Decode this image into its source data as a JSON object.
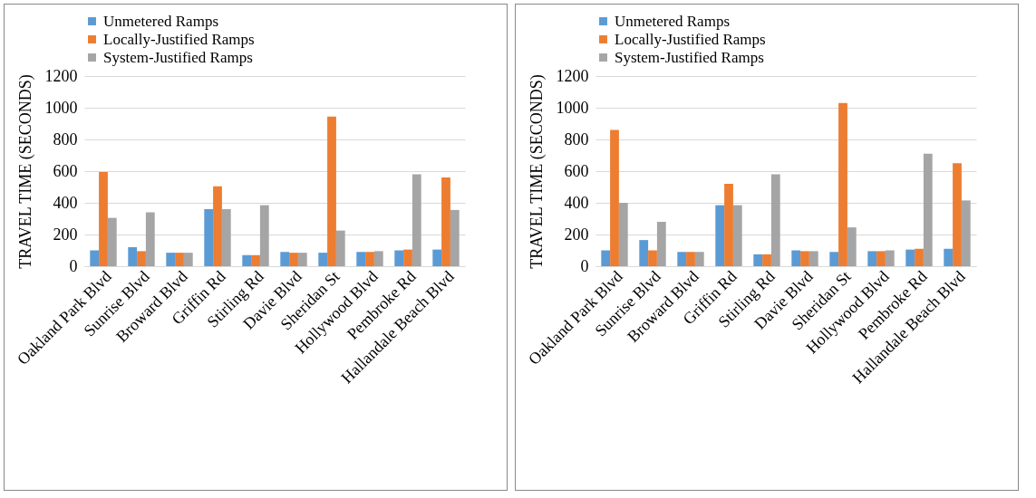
{
  "chart_data": [
    {
      "type": "bar",
      "ylabel": "TRAVEL TIME (SECONDS)",
      "categories": [
        "Oakland Park Blvd",
        "Sunrise Blvd",
        "Broward Blvd",
        "Griffin Rd",
        "Stirling Rd",
        "Davie Blvd",
        "Sheridan St",
        "Hollywood Blvd",
        "Pembroke Rd",
        "Hallandale Beach Blvd"
      ],
      "series": [
        {
          "name": "Unmetered Ramps",
          "color": "#5b9bd5",
          "values": [
            100,
            120,
            85,
            360,
            70,
            90,
            85,
            90,
            100,
            105
          ]
        },
        {
          "name": "Locally-Justified Ramps",
          "color": "#ed7d31",
          "values": [
            595,
            95,
            85,
            505,
            70,
            85,
            945,
            90,
            105,
            560
          ]
        },
        {
          "name": "System-Justified Ramps",
          "color": "#a5a5a5",
          "values": [
            305,
            340,
            85,
            360,
            385,
            85,
            225,
            95,
            580,
            355
          ]
        }
      ],
      "ylim": [
        0,
        1200
      ],
      "yticks": [
        0,
        200,
        400,
        600,
        800,
        1000,
        1200
      ],
      "grid": "y",
      "legend": "top"
    },
    {
      "type": "bar",
      "ylabel": "TRAVEL TIME (SECONDS)",
      "categories": [
        "Oakland Park Blvd",
        "Sunrise Blvd",
        "Broward Blvd",
        "Griffin Rd",
        "Stirling Rd",
        "Davie Blvd",
        "Sheridan St",
        "Hollywood Blvd",
        "Pembroke Rd",
        "Hallandale Beach Blvd"
      ],
      "series": [
        {
          "name": "Unmetered Ramps",
          "color": "#5b9bd5",
          "values": [
            100,
            165,
            90,
            385,
            75,
            100,
            90,
            95,
            105,
            110
          ]
        },
        {
          "name": "Locally-Justified Ramps",
          "color": "#ed7d31",
          "values": [
            860,
            100,
            90,
            520,
            75,
            95,
            1030,
            95,
            110,
            650
          ]
        },
        {
          "name": "System-Justified Ramps",
          "color": "#a5a5a5",
          "values": [
            400,
            280,
            90,
            385,
            580,
            95,
            245,
            100,
            710,
            415
          ]
        }
      ],
      "ylim": [
        0,
        1200
      ],
      "yticks": [
        0,
        200,
        400,
        600,
        800,
        1000,
        1200
      ],
      "grid": "y",
      "legend": "top"
    }
  ]
}
